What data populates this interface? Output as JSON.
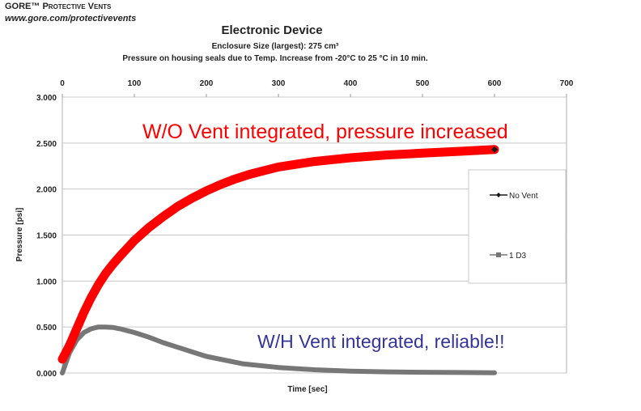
{
  "header": {
    "brand": "GORE™",
    "brand_sub": "Protective Vents",
    "url": "www.gore.com/protectivevents"
  },
  "chart_data": {
    "type": "line",
    "title": "Electronic Device",
    "subtitle_1": "Enclosure Size (largest):  275 cm³",
    "subtitle_2": "Pressure on housing seals due to Temp. Increase from -20°C to 25 °C in 10 min.",
    "xlabel": "Time  [sec]",
    "ylabel": "Pressure  [psi]",
    "xlim": [
      0,
      700
    ],
    "ylim": [
      0,
      3
    ],
    "x_ticks": [
      "0",
      "100",
      "200",
      "300",
      "400",
      "500",
      "600",
      "700"
    ],
    "y_ticks": [
      "0.000",
      "0.500",
      "1.000",
      "1.500",
      "2.000",
      "2.500",
      "3.000"
    ],
    "legend_position": "right",
    "series": [
      {
        "name": "No Vent",
        "color": "#1a1a1a",
        "highlight_color": "#ff0000",
        "x": [
          0,
          10,
          20,
          30,
          40,
          50,
          60,
          70,
          80,
          100,
          120,
          140,
          160,
          180,
          200,
          220,
          240,
          260,
          280,
          300,
          350,
          400,
          450,
          500,
          550,
          600
        ],
        "y": [
          0.15,
          0.3,
          0.48,
          0.66,
          0.82,
          0.96,
          1.08,
          1.18,
          1.27,
          1.44,
          1.58,
          1.7,
          1.81,
          1.9,
          1.98,
          2.05,
          2.11,
          2.16,
          2.2,
          2.24,
          2.3,
          2.34,
          2.37,
          2.39,
          2.41,
          2.43
        ]
      },
      {
        "name": "1  D3",
        "color": "#777777",
        "x": [
          0,
          10,
          20,
          30,
          40,
          50,
          60,
          70,
          80,
          100,
          120,
          140,
          160,
          180,
          200,
          250,
          300,
          350,
          400,
          450,
          500,
          550,
          600
        ],
        "y": [
          0.0,
          0.22,
          0.36,
          0.44,
          0.48,
          0.5,
          0.5,
          0.495,
          0.48,
          0.44,
          0.39,
          0.33,
          0.28,
          0.23,
          0.18,
          0.1,
          0.06,
          0.035,
          0.02,
          0.012,
          0.008,
          0.005,
          0.003
        ]
      }
    ],
    "annotations": [
      {
        "text": "W/O Vent integrated, pressure increased",
        "color": "#ff0000"
      },
      {
        "text": "W/H Vent integrated, reliable!!",
        "color": "#333399"
      }
    ]
  }
}
